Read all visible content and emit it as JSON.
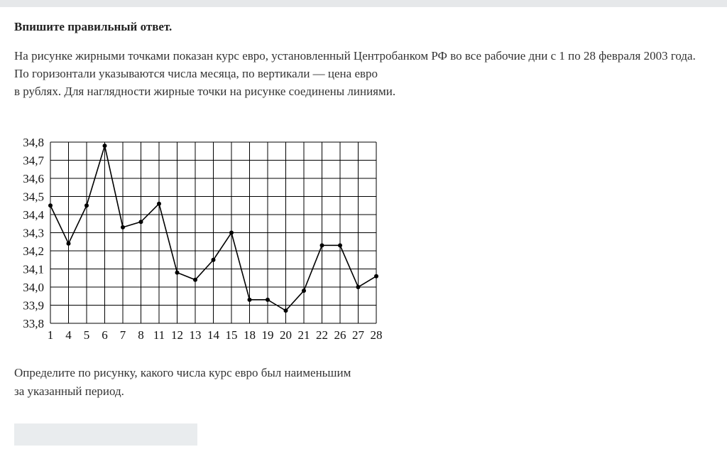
{
  "title": "Впишите правильный ответ.",
  "paragraphs": [
    "На рисунке жирными точками показан курс евро, установленный Центробанком РФ во все рабочие дни с 1 по 28 февраля 2003 года.",
    "По горизонтали указываются числа месяца, по вертикали — цена евро",
    "в рублях. Для наглядности жирные точки на рисунке соединены линиями."
  ],
  "question": [
    "Определите по рисунку, какого числа курс евро был наименьшим",
    "за указанный период."
  ],
  "answer_value": "",
  "chart_data": {
    "type": "line",
    "categories": [
      "1",
      "4",
      "5",
      "6",
      "7",
      "8",
      "11",
      "12",
      "13",
      "14",
      "15",
      "18",
      "19",
      "20",
      "21",
      "22",
      "26",
      "27",
      "28"
    ],
    "values": [
      34.45,
      34.24,
      34.45,
      34.78,
      34.33,
      34.36,
      34.46,
      34.08,
      34.04,
      34.15,
      34.3,
      33.93,
      33.93,
      33.87,
      33.98,
      34.23,
      34.23,
      34.0,
      34.06
    ],
    "yticks": [
      "33,8",
      "33,9",
      "34,0",
      "34,1",
      "34,2",
      "34,3",
      "34,4",
      "34,5",
      "34,6",
      "34,7",
      "34,8"
    ],
    "ylim": [
      33.8,
      34.8
    ],
    "grid": true,
    "line_color": "#000000"
  }
}
